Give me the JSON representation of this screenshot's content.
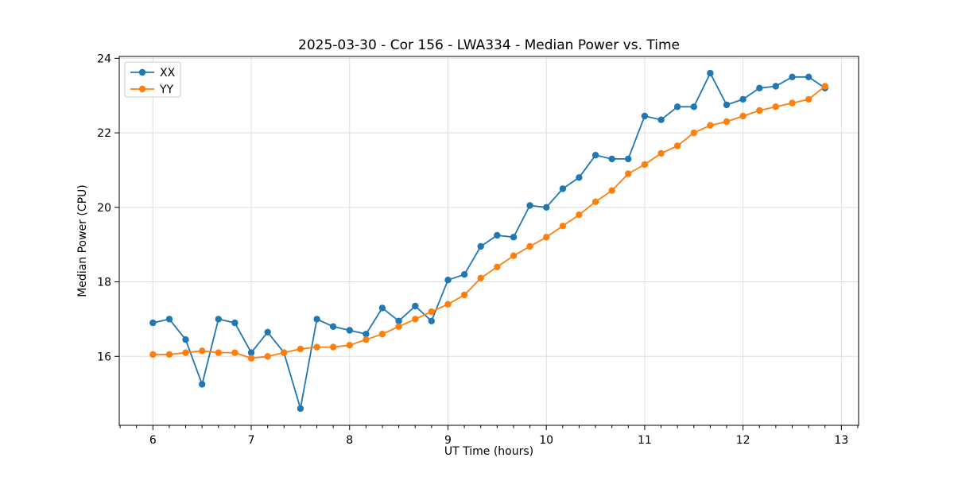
{
  "chart_data": {
    "type": "line",
    "title": "2025-03-30 - Cor 156 - LWA334 - Median Power vs. Time",
    "xlabel": "UT Time (hours)",
    "ylabel": "Median Power (CPU)",
    "xlim": [
      5.658,
      13.175
    ],
    "ylim": [
      14.15,
      24.05
    ],
    "x_major_ticks": [
      6,
      7,
      8,
      9,
      10,
      11,
      12,
      13
    ],
    "y_major_ticks": [
      16,
      18,
      20,
      22,
      24
    ],
    "x_minor_interval_hours": 0.16667,
    "grid": true,
    "grid_color": "#dedede",
    "legend_position": "upper-left",
    "x": [
      6.0,
      6.167,
      6.333,
      6.5,
      6.667,
      6.833,
      7.0,
      7.167,
      7.333,
      7.5,
      7.667,
      7.833,
      8.0,
      8.167,
      8.333,
      8.5,
      8.667,
      8.833,
      9.0,
      9.167,
      9.333,
      9.5,
      9.667,
      9.833,
      10.0,
      10.167,
      10.333,
      10.5,
      10.667,
      10.833,
      11.0,
      11.167,
      11.333,
      11.5,
      11.667,
      11.833,
      12.0,
      12.167,
      12.333,
      12.5,
      12.667,
      12.833
    ],
    "series": [
      {
        "name": "XX",
        "color": "#1f77b4",
        "values": [
          16.9,
          17.0,
          16.45,
          15.25,
          17.0,
          16.9,
          16.1,
          16.65,
          16.1,
          14.6,
          17.0,
          16.8,
          16.7,
          16.6,
          17.3,
          16.95,
          17.35,
          16.95,
          18.05,
          18.2,
          18.95,
          19.25,
          19.2,
          20.05,
          20.0,
          20.5,
          20.8,
          21.4,
          21.3,
          21.3,
          22.45,
          22.35,
          22.7,
          22.7,
          23.6,
          22.75,
          22.9,
          23.2,
          23.25,
          23.5,
          23.5,
          23.2
        ]
      },
      {
        "name": "YY",
        "color": "#ff7f0e",
        "values": [
          16.05,
          16.05,
          16.1,
          16.15,
          16.1,
          16.1,
          15.95,
          16.0,
          16.1,
          16.2,
          16.25,
          16.25,
          16.3,
          16.45,
          16.6,
          16.8,
          17.0,
          17.2,
          17.4,
          17.65,
          18.1,
          18.4,
          18.7,
          18.95,
          19.2,
          19.5,
          19.8,
          20.15,
          20.45,
          20.9,
          21.15,
          21.45,
          21.65,
          22.0,
          22.2,
          22.3,
          22.45,
          22.6,
          22.7,
          22.8,
          22.9,
          23.25
        ]
      }
    ]
  }
}
